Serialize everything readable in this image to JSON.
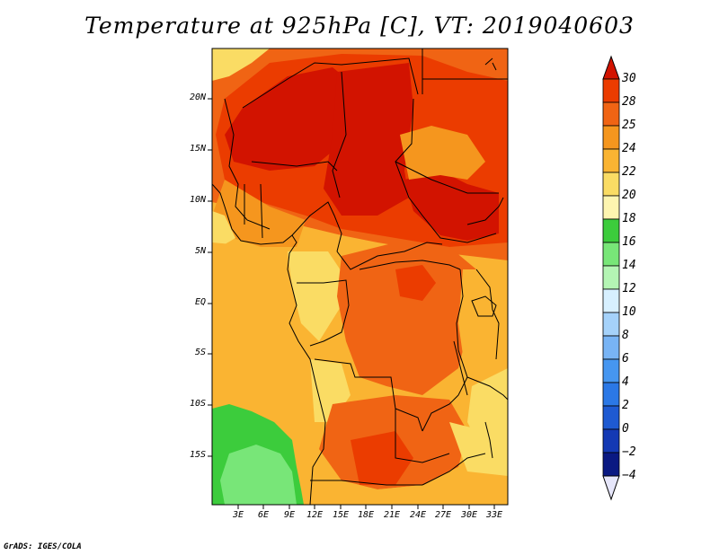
{
  "title": "Temperature at 925hPa [C], VT: 2019040603",
  "credit": "GrADS: IGES/COLA",
  "map": {
    "lat_labels": [
      "20N",
      "15N",
      "10N",
      "5N",
      "EQ",
      "5S",
      "10S",
      "15S"
    ],
    "lon_labels": [
      "3E",
      "6E",
      "9E",
      "12E",
      "15E",
      "18E",
      "21E",
      "24E",
      "27E",
      "30E",
      "33E"
    ],
    "lat_range": [
      -19.5,
      24.5
    ],
    "lon_range": [
      0,
      34.5
    ]
  },
  "colorbar": {
    "levels": [
      "30",
      "28",
      "25",
      "24",
      "22",
      "20",
      "18",
      "16",
      "14",
      "12",
      "10",
      "8",
      "6",
      "4",
      "2",
      "0",
      "−2",
      "−4"
    ],
    "colors": [
      "#d21300",
      "#eb3c00",
      "#f06414",
      "#f5961e",
      "#fab432",
      "#fadc64",
      "#fdf5b0",
      "#3ccc3c",
      "#78e678",
      "#b4f5b4",
      "#d7f0ff",
      "#a5d2fa",
      "#78b4f5",
      "#4696f0",
      "#2b78e6",
      "#1e5ad2",
      "#1439b4",
      "#0a1982"
    ],
    "overflow_low_color": "#e6e6fa"
  },
  "regions": {
    "hot": "#d21300",
    "very_warm": "#eb3c00",
    "warm": "#f06414",
    "mild_warm": "#f5961e",
    "mild": "#fab432",
    "cool": "#fadc64",
    "cooler": "#fdf5b0",
    "green_dark": "#3ccc3c",
    "green_light": "#78e678"
  }
}
